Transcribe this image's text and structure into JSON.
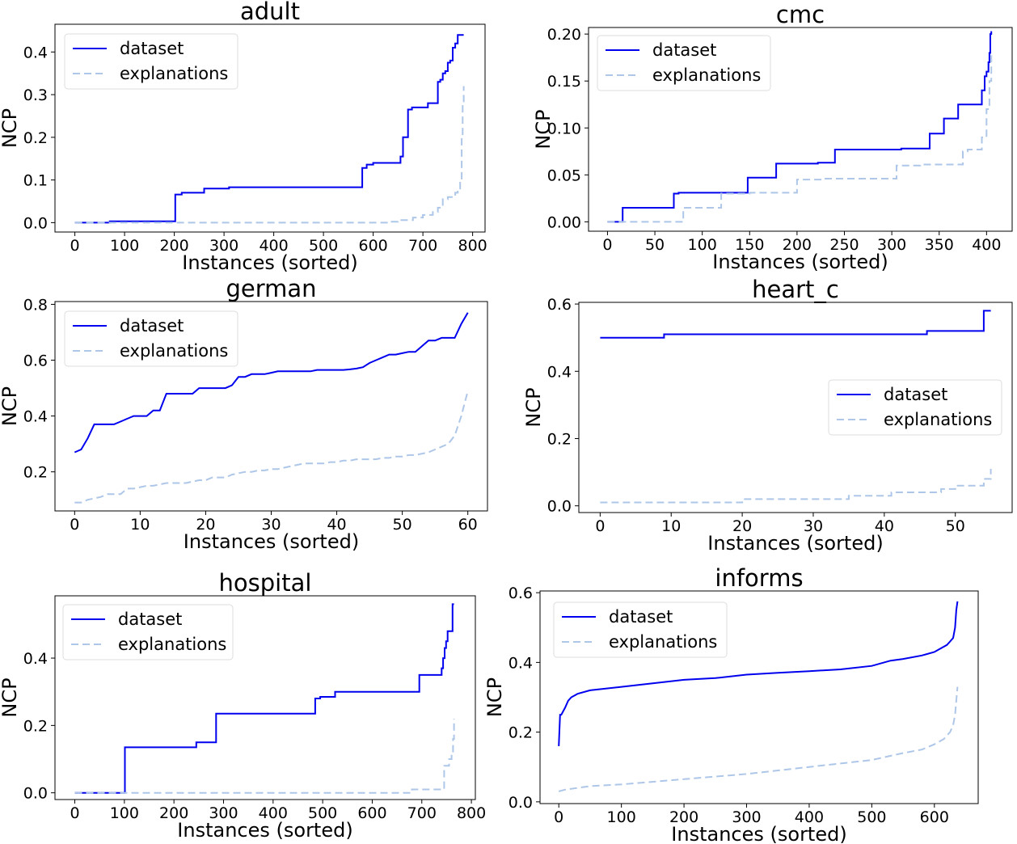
{
  "chart_data": [
    {
      "type": "line",
      "title": "adult",
      "xlabel": "Instances (sorted)",
      "ylabel": "NCP",
      "xlim": [
        -40,
        825
      ],
      "ylim": [
        -0.022,
        0.465
      ],
      "xticks": [
        0,
        100,
        200,
        300,
        400,
        500,
        600,
        700,
        800
      ],
      "yticks": [
        0.0,
        0.1,
        0.2,
        0.3,
        0.4
      ],
      "ytick_decimals": 1,
      "legend_position": "upper left",
      "series": [
        {
          "name": "dataset",
          "step": true,
          "x": [
            0,
            70,
            200,
            202,
            215,
            260,
            310,
            578,
            587,
            592,
            600,
            655,
            660,
            670,
            678,
            700,
            705,
            710,
            715,
            720,
            730,
            735,
            740,
            745,
            750,
            755,
            760,
            765,
            770,
            775,
            782
          ],
          "y": [
            0.0,
            0.003,
            0.003,
            0.066,
            0.07,
            0.08,
            0.083,
            0.128,
            0.136,
            0.136,
            0.14,
            0.155,
            0.2,
            0.265,
            0.27,
            0.27,
            0.27,
            0.28,
            0.28,
            0.28,
            0.33,
            0.335,
            0.35,
            0.355,
            0.375,
            0.38,
            0.41,
            0.42,
            0.44,
            0.44,
            0.44
          ]
        },
        {
          "name": "explanations",
          "step": true,
          "x": [
            0,
            600,
            630,
            650,
            680,
            700,
            720,
            730,
            740,
            750,
            760,
            765,
            770,
            775,
            778,
            780,
            782
          ],
          "y": [
            0.0,
            0.0,
            0.002,
            0.006,
            0.012,
            0.018,
            0.025,
            0.035,
            0.055,
            0.06,
            0.063,
            0.07,
            0.08,
            0.1,
            0.2,
            0.28,
            0.32
          ]
        }
      ]
    },
    {
      "type": "line",
      "title": "cmc",
      "xlabel": "Instances (sorted)",
      "ylabel": "NCP",
      "xlim": [
        -20,
        427
      ],
      "ylim": [
        -0.01,
        0.207
      ],
      "xticks": [
        0,
        50,
        100,
        150,
        200,
        250,
        300,
        350,
        400
      ],
      "yticks": [
        0.0,
        0.05,
        0.1,
        0.15,
        0.2
      ],
      "ytick_decimals": 2,
      "legend_position": "upper left",
      "series": [
        {
          "name": "dataset",
          "step": true,
          "x": [
            0,
            16,
            70,
            75,
            148,
            178,
            200,
            222,
            240,
            275,
            290,
            310,
            340,
            350,
            355,
            365,
            370,
            390,
            395,
            398,
            400,
            402,
            403,
            404,
            405
          ],
          "y": [
            0.0,
            0.015,
            0.03,
            0.031,
            0.047,
            0.062,
            0.062,
            0.063,
            0.077,
            0.077,
            0.077,
            0.078,
            0.094,
            0.094,
            0.11,
            0.11,
            0.125,
            0.125,
            0.14,
            0.155,
            0.16,
            0.17,
            0.18,
            0.2,
            0.203
          ]
        },
        {
          "name": "explanations",
          "step": true,
          "x": [
            0,
            80,
            120,
            150,
            200,
            230,
            275,
            292,
            296,
            305,
            330,
            360,
            375,
            380,
            390,
            395,
            400,
            403,
            405
          ],
          "y": [
            0.0,
            0.015,
            0.03,
            0.031,
            0.045,
            0.046,
            0.046,
            0.046,
            0.046,
            0.06,
            0.061,
            0.061,
            0.075,
            0.077,
            0.077,
            0.09,
            0.12,
            0.15,
            0.18
          ]
        }
      ]
    },
    {
      "type": "line",
      "title": "german",
      "xlabel": "Instances (sorted)",
      "ylabel": "NCP",
      "xlim": [
        -3,
        63
      ],
      "ylim": [
        0.06,
        0.81
      ],
      "xticks": [
        0,
        10,
        20,
        30,
        40,
        50,
        60
      ],
      "yticks": [
        0.2,
        0.4,
        0.6,
        0.8
      ],
      "ytick_decimals": 1,
      "legend_position": "upper left",
      "series": [
        {
          "name": "dataset",
          "step": false,
          "x": [
            0,
            1,
            2,
            3,
            4,
            5,
            6,
            7,
            8,
            9,
            10,
            11,
            12,
            13,
            14,
            15,
            16,
            17,
            18,
            19,
            20,
            21,
            22,
            23,
            24,
            25,
            26,
            27,
            28,
            29,
            30,
            31,
            32,
            33,
            34,
            35,
            36,
            37,
            38,
            39,
            40,
            41,
            42,
            43,
            44,
            45,
            46,
            47,
            48,
            49,
            50,
            51,
            52,
            53,
            54,
            55,
            56,
            57,
            58,
            59,
            60
          ],
          "y": [
            0.27,
            0.28,
            0.32,
            0.37,
            0.37,
            0.37,
            0.37,
            0.38,
            0.39,
            0.4,
            0.4,
            0.4,
            0.42,
            0.42,
            0.48,
            0.48,
            0.48,
            0.48,
            0.48,
            0.5,
            0.5,
            0.5,
            0.5,
            0.5,
            0.51,
            0.54,
            0.54,
            0.55,
            0.55,
            0.55,
            0.555,
            0.56,
            0.56,
            0.56,
            0.56,
            0.56,
            0.56,
            0.565,
            0.565,
            0.565,
            0.565,
            0.565,
            0.567,
            0.57,
            0.575,
            0.59,
            0.6,
            0.61,
            0.62,
            0.62,
            0.625,
            0.63,
            0.63,
            0.65,
            0.67,
            0.67,
            0.68,
            0.68,
            0.68,
            0.73,
            0.77
          ]
        },
        {
          "name": "explanations",
          "step": false,
          "x": [
            0,
            1,
            2,
            3,
            4,
            5,
            6,
            7,
            8,
            9,
            10,
            11,
            12,
            13,
            14,
            15,
            16,
            17,
            18,
            19,
            20,
            21,
            22,
            23,
            24,
            25,
            26,
            27,
            28,
            29,
            30,
            31,
            32,
            33,
            34,
            35,
            36,
            37,
            38,
            39,
            40,
            41,
            42,
            43,
            44,
            45,
            46,
            47,
            48,
            49,
            50,
            51,
            52,
            53,
            54,
            55,
            56,
            57,
            58,
            59,
            60
          ],
          "y": [
            0.09,
            0.09,
            0.1,
            0.105,
            0.11,
            0.12,
            0.12,
            0.12,
            0.14,
            0.14,
            0.145,
            0.15,
            0.15,
            0.155,
            0.16,
            0.16,
            0.16,
            0.16,
            0.165,
            0.17,
            0.17,
            0.18,
            0.18,
            0.18,
            0.19,
            0.195,
            0.2,
            0.2,
            0.205,
            0.205,
            0.21,
            0.21,
            0.215,
            0.22,
            0.225,
            0.23,
            0.23,
            0.23,
            0.23,
            0.235,
            0.235,
            0.24,
            0.24,
            0.245,
            0.245,
            0.245,
            0.245,
            0.25,
            0.25,
            0.255,
            0.255,
            0.26,
            0.26,
            0.265,
            0.27,
            0.28,
            0.29,
            0.3,
            0.33,
            0.4,
            0.49
          ]
        }
      ]
    },
    {
      "type": "line",
      "title": "heart_c",
      "xlabel": "Instances (sorted)",
      "ylabel": "NCP",
      "xlim": [
        -3,
        58
      ],
      "ylim": [
        -0.02,
        0.605
      ],
      "xticks": [
        0,
        10,
        20,
        30,
        40,
        50
      ],
      "yticks": [
        0.0,
        0.2,
        0.4,
        0.6
      ],
      "ytick_decimals": 1,
      "legend_position": "center right",
      "series": [
        {
          "name": "dataset",
          "step": true,
          "x": [
            0,
            8,
            9,
            45,
            46,
            53,
            54,
            55
          ],
          "y": [
            0.5,
            0.5,
            0.51,
            0.51,
            0.52,
            0.52,
            0.58,
            0.58
          ]
        },
        {
          "name": "explanations",
          "step": true,
          "x": [
            0,
            19,
            20,
            34,
            35,
            40,
            41,
            47,
            48,
            49,
            50,
            53,
            54,
            55
          ],
          "y": [
            0.01,
            0.01,
            0.02,
            0.02,
            0.03,
            0.03,
            0.04,
            0.04,
            0.05,
            0.05,
            0.06,
            0.06,
            0.08,
            0.11
          ]
        }
      ]
    },
    {
      "type": "line",
      "title": "hospital",
      "xlabel": "Instances (sorted)",
      "ylabel": "NCP",
      "xlim": [
        -40,
        808
      ],
      "ylim": [
        -0.02,
        0.585
      ],
      "xticks": [
        0,
        100,
        200,
        300,
        400,
        500,
        600,
        700,
        800
      ],
      "yticks": [
        0.0,
        0.2,
        0.4
      ],
      "ytick_decimals": 1,
      "legend_position": "upper left",
      "series": [
        {
          "name": "dataset",
          "step": true,
          "x": [
            0,
            100,
            101,
            245,
            285,
            485,
            495,
            525,
            690,
            695,
            740,
            743,
            746,
            749,
            752,
            755,
            762,
            765
          ],
          "y": [
            0.0,
            0.0,
            0.135,
            0.15,
            0.235,
            0.28,
            0.285,
            0.3,
            0.3,
            0.35,
            0.37,
            0.4,
            0.43,
            0.45,
            0.48,
            0.48,
            0.56,
            0.56
          ]
        },
        {
          "name": "explanations",
          "step": true,
          "x": [
            0,
            680,
            740,
            745,
            755,
            760,
            763,
            765
          ],
          "y": [
            0.0,
            0.01,
            0.01,
            0.08,
            0.1,
            0.12,
            0.16,
            0.22
          ]
        }
      ]
    },
    {
      "type": "line",
      "title": "informs",
      "xlabel": "Instances (sorted)",
      "ylabel": "NCP",
      "xlim": [
        -30,
        670
      ],
      "ylim": [
        -0.005,
        0.605
      ],
      "xticks": [
        0,
        100,
        200,
        300,
        400,
        500,
        600
      ],
      "yticks": [
        0.0,
        0.2,
        0.4,
        0.6
      ],
      "ytick_decimals": 1,
      "legend_position": "upper left",
      "series": [
        {
          "name": "dataset",
          "step": false,
          "x": [
            0,
            2,
            4,
            10,
            15,
            20,
            30,
            50,
            100,
            150,
            200,
            250,
            300,
            350,
            400,
            450,
            500,
            530,
            550,
            580,
            600,
            610,
            620,
            625,
            630,
            633,
            635,
            637
          ],
          "y": [
            0.16,
            0.25,
            0.25,
            0.27,
            0.29,
            0.3,
            0.31,
            0.32,
            0.33,
            0.34,
            0.35,
            0.355,
            0.365,
            0.37,
            0.375,
            0.38,
            0.39,
            0.405,
            0.41,
            0.42,
            0.43,
            0.44,
            0.45,
            0.46,
            0.47,
            0.5,
            0.55,
            0.575
          ]
        },
        {
          "name": "explanations",
          "step": false,
          "x": [
            0,
            10,
            50,
            100,
            200,
            300,
            400,
            450,
            500,
            550,
            580,
            600,
            615,
            625,
            630,
            633,
            635,
            637
          ],
          "y": [
            0.03,
            0.035,
            0.045,
            0.05,
            0.065,
            0.08,
            0.1,
            0.11,
            0.12,
            0.14,
            0.15,
            0.165,
            0.18,
            0.2,
            0.22,
            0.25,
            0.29,
            0.33
          ]
        }
      ]
    }
  ],
  "colors": {
    "dataset": "#0000ee",
    "explanations": "#aec7e8",
    "axes": "#000000",
    "legend_border": "#dddddd"
  }
}
